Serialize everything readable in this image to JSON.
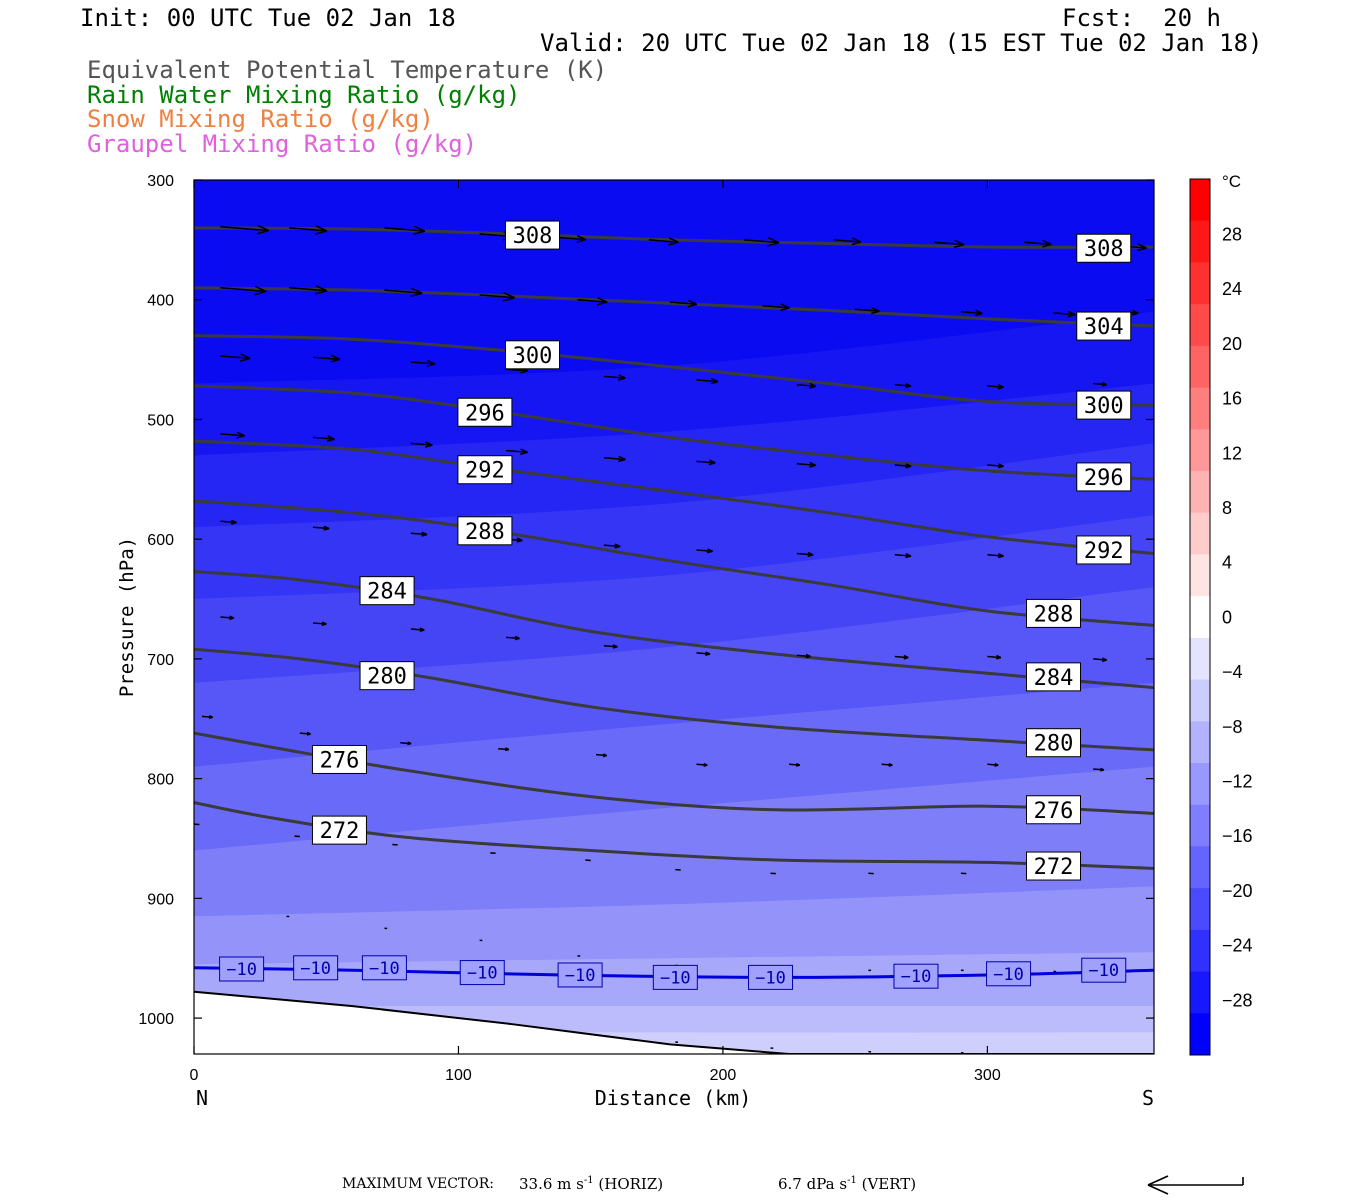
{
  "header": {
    "init": "Init: 00 UTC Tue 02 Jan 18",
    "fcst": "Fcst:  20 h",
    "valid": "Valid: 20 UTC Tue 02 Jan 18 (15 EST Tue 02 Jan 18)"
  },
  "legend": [
    {
      "text": "Equivalent Potential Temperature (K)",
      "color": "#555555"
    },
    {
      "text": "Rain Water Mixing Ratio (g/kg)",
      "color": "#008000"
    },
    {
      "text": "Snow Mixing Ratio (g/kg)",
      "color": "#f08040"
    },
    {
      "text": "Graupel Mixing Ratio (g/kg)",
      "color": "#e060e0"
    }
  ],
  "footer": {
    "label": "MAXIMUM VECTOR:",
    "horiz_value": "33.6 m s",
    "horiz_unit": "(HORIZ)",
    "vert_value": "6.7 dPa s",
    "vert_unit": "(VERT)",
    "exponent": "-1"
  },
  "chart_data": {
    "type": "cross-section",
    "xlabel": "Distance (km)",
    "ylabel": "Pressure (hPa)",
    "xlim": [
      0,
      363
    ],
    "ylim": [
      1030,
      300
    ],
    "x_ticks": [
      0,
      100,
      200,
      300
    ],
    "y_ticks": [
      300,
      400,
      500,
      600,
      700,
      800,
      900,
      1000
    ],
    "x_end_labels": {
      "left": "N",
      "right": "S"
    },
    "colorbar": {
      "unit": "°C",
      "ticks": [
        28,
        24,
        20,
        16,
        12,
        8,
        4,
        0,
        -4,
        -8,
        -12,
        -16,
        -20,
        -24,
        -28
      ],
      "colors": [
        "#ff0000",
        "#ff1818",
        "#ff3030",
        "#ff4a4a",
        "#ff6464",
        "#ff7e7e",
        "#ff9898",
        "#ffb2b2",
        "#ffcccc",
        "#ffe4e4",
        "#ffffff",
        "#e4e4ff",
        "#ccccff",
        "#b2b2ff",
        "#9898ff",
        "#7e7e ff",
        "#6464ff",
        "#4a4aff",
        "#3030ff",
        "#1818ff",
        "#0000ff"
      ]
    },
    "theta_e_contours": [
      {
        "value": 308,
        "points": [
          [
            0,
            340
          ],
          [
            60,
            341
          ],
          [
            120,
            345
          ],
          [
            180,
            350
          ],
          [
            240,
            353
          ],
          [
            300,
            356
          ],
          [
            363,
            356
          ]
        ],
        "labels": [
          [
            128,
            346
          ],
          [
            344,
            357
          ]
        ]
      },
      {
        "value": 304,
        "points": [
          [
            0,
            390
          ],
          [
            60,
            392
          ],
          [
            120,
            397
          ],
          [
            180,
            403
          ],
          [
            240,
            409
          ],
          [
            300,
            416
          ],
          [
            363,
            422
          ]
        ],
        "labels": [
          [
            344,
            422
          ]
        ]
      },
      {
        "value": 300,
        "points": [
          [
            0,
            430
          ],
          [
            60,
            433
          ],
          [
            120,
            443
          ],
          [
            180,
            456
          ],
          [
            240,
            470
          ],
          [
            300,
            485
          ],
          [
            363,
            488
          ]
        ],
        "labels": [
          [
            128,
            446
          ],
          [
            344,
            488
          ]
        ]
      },
      {
        "value": 296,
        "points": [
          [
            0,
            472
          ],
          [
            60,
            478
          ],
          [
            110,
            492
          ],
          [
            180,
            515
          ],
          [
            240,
            530
          ],
          [
            300,
            543
          ],
          [
            363,
            550
          ]
        ],
        "labels": [
          [
            110,
            494
          ],
          [
            344,
            548
          ]
        ]
      },
      {
        "value": 292,
        "points": [
          [
            0,
            518
          ],
          [
            60,
            525
          ],
          [
            110,
            540
          ],
          [
            180,
            560
          ],
          [
            240,
            578
          ],
          [
            300,
            598
          ],
          [
            363,
            612
          ]
        ],
        "labels": [
          [
            110,
            542
          ],
          [
            344,
            609
          ]
        ]
      },
      {
        "value": 288,
        "points": [
          [
            0,
            568
          ],
          [
            60,
            578
          ],
          [
            110,
            592
          ],
          [
            180,
            618
          ],
          [
            240,
            638
          ],
          [
            300,
            660
          ],
          [
            363,
            672
          ]
        ],
        "labels": [
          [
            110,
            593
          ],
          [
            325,
            662
          ]
        ]
      },
      {
        "value": 284,
        "points": [
          [
            0,
            627
          ],
          [
            40,
            634
          ],
          [
            90,
            650
          ],
          [
            150,
            677
          ],
          [
            220,
            696
          ],
          [
            300,
            712
          ],
          [
            363,
            724
          ]
        ],
        "labels": [
          [
            73,
            643
          ],
          [
            325,
            715
          ]
        ]
      },
      {
        "value": 280,
        "points": [
          [
            0,
            692
          ],
          [
            40,
            700
          ],
          [
            90,
            716
          ],
          [
            150,
            740
          ],
          [
            220,
            757
          ],
          [
            300,
            768
          ],
          [
            363,
            776
          ]
        ],
        "labels": [
          [
            73,
            714
          ],
          [
            325,
            770
          ]
        ]
      },
      {
        "value": 276,
        "points": [
          [
            0,
            762
          ],
          [
            30,
            774
          ],
          [
            80,
            793
          ],
          [
            150,
            815
          ],
          [
            220,
            826
          ],
          [
            300,
            823
          ],
          [
            363,
            829
          ]
        ],
        "labels": [
          [
            55,
            784
          ],
          [
            325,
            826
          ]
        ]
      },
      {
        "value": 272,
        "points": [
          [
            0,
            820
          ],
          [
            30,
            833
          ],
          [
            80,
            849
          ],
          [
            150,
            860
          ],
          [
            220,
            868
          ],
          [
            300,
            870
          ],
          [
            363,
            875
          ]
        ],
        "labels": [
          [
            55,
            843
          ],
          [
            325,
            873
          ]
        ]
      }
    ],
    "temp_contours": [
      {
        "value": -10,
        "points": [
          [
            0,
            958
          ],
          [
            60,
            960
          ],
          [
            140,
            964
          ],
          [
            220,
            966
          ],
          [
            300,
            964
          ],
          [
            363,
            960
          ]
        ],
        "labels": [
          [
            18,
            959
          ],
          [
            46,
            958
          ],
          [
            72,
            958
          ],
          [
            109,
            962
          ],
          [
            146,
            964
          ],
          [
            182,
            966
          ],
          [
            218,
            966
          ],
          [
            273,
            965
          ],
          [
            308,
            963
          ],
          [
            344,
            960
          ]
        ]
      }
    ],
    "wind_vectors": [
      [
        [
          10,
          339,
          36
        ],
        [
          36,
          340,
          28
        ],
        [
          72,
          340,
          30
        ],
        [
          108,
          345,
          26
        ],
        [
          138,
          348,
          20
        ],
        [
          172,
          350,
          22
        ],
        [
          208,
          350,
          26
        ],
        [
          242,
          350,
          20
        ],
        [
          280,
          352,
          22
        ],
        [
          314,
          352,
          20
        ],
        [
          350,
          355,
          20
        ]
      ],
      [
        [
          10,
          390,
          34
        ],
        [
          36,
          390,
          28
        ],
        [
          72,
          392,
          28
        ],
        [
          108,
          396,
          26
        ],
        [
          145,
          400,
          22
        ],
        [
          180,
          402,
          20
        ],
        [
          215,
          405,
          20
        ],
        [
          250,
          408,
          18
        ],
        [
          290,
          410,
          16
        ],
        [
          325,
          411,
          16
        ],
        [
          350,
          410,
          14
        ]
      ],
      [
        [
          10,
          447,
          22
        ],
        [
          45,
          448,
          20
        ],
        [
          82,
          452,
          18
        ],
        [
          118,
          458,
          16
        ],
        [
          155,
          464,
          16
        ],
        [
          190,
          467,
          16
        ],
        [
          228,
          471,
          14
        ],
        [
          265,
          471,
          12
        ],
        [
          300,
          472,
          12
        ],
        [
          340,
          470,
          10
        ]
      ],
      [
        [
          10,
          512,
          18
        ],
        [
          45,
          515,
          16
        ],
        [
          82,
          520,
          16
        ],
        [
          118,
          526,
          16
        ],
        [
          155,
          532,
          16
        ],
        [
          190,
          535,
          14
        ],
        [
          228,
          537,
          14
        ],
        [
          265,
          538,
          12
        ],
        [
          300,
          538,
          12
        ],
        [
          340,
          539,
          10
        ]
      ],
      [
        [
          10,
          585,
          12
        ],
        [
          45,
          590,
          12
        ],
        [
          82,
          595,
          12
        ],
        [
          118,
          600,
          12
        ],
        [
          155,
          605,
          12
        ],
        [
          190,
          609,
          12
        ],
        [
          228,
          612,
          12
        ],
        [
          265,
          613,
          12
        ],
        [
          300,
          613,
          12
        ],
        [
          340,
          614,
          10
        ]
      ],
      [
        [
          10,
          665,
          10
        ],
        [
          45,
          670,
          10
        ],
        [
          82,
          675,
          10
        ],
        [
          118,
          682,
          10
        ],
        [
          155,
          689,
          10
        ],
        [
          190,
          695,
          10
        ],
        [
          228,
          697,
          10
        ],
        [
          265,
          698,
          10
        ],
        [
          300,
          698,
          10
        ],
        [
          340,
          700,
          10
        ]
      ],
      [
        [
          3,
          748,
          8
        ],
        [
          40,
          762,
          8
        ],
        [
          78,
          770,
          8
        ],
        [
          115,
          775,
          8
        ],
        [
          152,
          780,
          8
        ],
        [
          190,
          788,
          8
        ],
        [
          225,
          788,
          8
        ],
        [
          260,
          788,
          8
        ],
        [
          300,
          788,
          8
        ],
        [
          340,
          792,
          8
        ]
      ],
      [
        [
          0,
          838,
          4
        ],
        [
          38,
          848,
          4
        ],
        [
          75,
          855,
          4
        ],
        [
          112,
          862,
          4
        ],
        [
          148,
          868,
          4
        ],
        [
          182,
          876,
          4
        ],
        [
          218,
          879,
          4
        ],
        [
          255,
          879,
          4
        ],
        [
          290,
          879,
          4
        ],
        [
          325,
          880,
          4
        ]
      ],
      [
        [
          35,
          915,
          2
        ],
        [
          72,
          925,
          2
        ],
        [
          108,
          935,
          2
        ],
        [
          145,
          948,
          2
        ],
        [
          182,
          956,
          2
        ],
        [
          218,
          958,
          2
        ],
        [
          255,
          960,
          2
        ],
        [
          290,
          960,
          2
        ],
        [
          325,
          961,
          2
        ]
      ],
      [
        [
          35,
          985,
          2
        ],
        [
          72,
          995,
          2
        ],
        [
          108,
          1005,
          2
        ],
        [
          145,
          1015,
          2
        ],
        [
          182,
          1020,
          2
        ],
        [
          218,
          1025,
          2
        ],
        [
          255,
          1028,
          2
        ],
        [
          290,
          1029,
          2
        ]
      ]
    ],
    "terrain": [
      [
        0,
        978
      ],
      [
        60,
        990
      ],
      [
        120,
        1005
      ],
      [
        180,
        1022
      ],
      [
        225,
        1030
      ],
      [
        363,
        1030
      ]
    ],
    "temperature_field_bands": [
      {
        "color": "#0b0bf2",
        "top": [
          [
            0,
            300
          ],
          [
            363,
            300
          ]
        ]
      },
      {
        "color": "#1616f3",
        "top": [
          [
            0,
            470
          ],
          [
            180,
            455
          ],
          [
            363,
            410
          ]
        ]
      },
      {
        "color": "#2525f4",
        "top": [
          [
            0,
            530
          ],
          [
            180,
            510
          ],
          [
            363,
            470
          ]
        ]
      },
      {
        "color": "#3535f5",
        "top": [
          [
            0,
            590
          ],
          [
            180,
            570
          ],
          [
            363,
            520
          ]
        ]
      },
      {
        "color": "#4545f6",
        "top": [
          [
            0,
            650
          ],
          [
            180,
            630
          ],
          [
            363,
            580
          ]
        ]
      },
      {
        "color": "#5757f7",
        "top": [
          [
            0,
            720
          ],
          [
            180,
            690
          ],
          [
            363,
            640
          ]
        ]
      },
      {
        "color": "#6a6af8",
        "top": [
          [
            0,
            790
          ],
          [
            150,
            760
          ],
          [
            363,
            720
          ]
        ]
      },
      {
        "color": "#7e7ef9",
        "top": [
          [
            0,
            860
          ],
          [
            150,
            830
          ],
          [
            363,
            790
          ]
        ]
      },
      {
        "color": "#9393fa",
        "top": [
          [
            0,
            915
          ],
          [
            180,
            905
          ],
          [
            363,
            890
          ]
        ]
      },
      {
        "color": "#a8a8fb",
        "top": [
          [
            0,
            955
          ],
          [
            180,
            950
          ],
          [
            363,
            945
          ]
        ]
      },
      {
        "color": "#bcbcfc",
        "top": [
          [
            0,
            990
          ],
          [
            180,
            990
          ],
          [
            363,
            990
          ]
        ]
      },
      {
        "color": "#cfcffd",
        "top": [
          [
            0,
            1010
          ],
          [
            180,
            1012
          ],
          [
            363,
            1012
          ]
        ]
      }
    ]
  }
}
